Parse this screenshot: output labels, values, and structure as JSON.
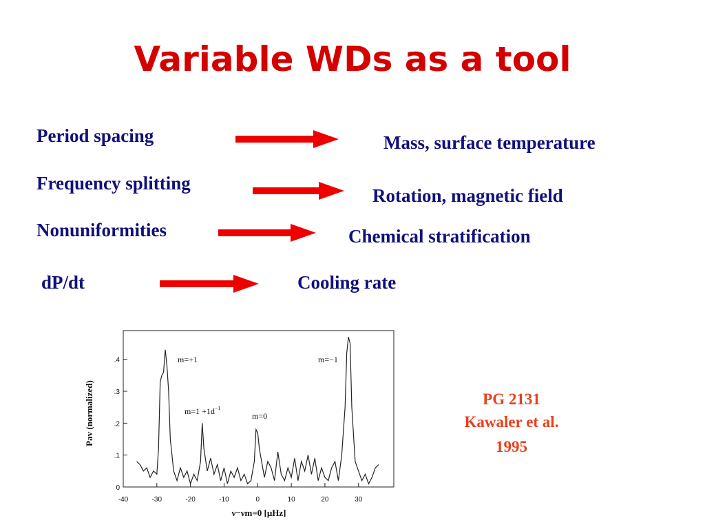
{
  "title": "Variable WDs as a tool",
  "rows": [
    {
      "left": "Period spacing",
      "right": "Mass, surface temperature"
    },
    {
      "left": "Frequency splitting",
      "right": "Rotation, magnetic field"
    },
    {
      "left": "Nonuniformities",
      "right": "Chemical stratification"
    },
    {
      "left": "dP/dt",
      "right": "Cooling rate"
    }
  ],
  "chart_data": {
    "type": "line",
    "xlabel": "ν−νm=0 [μHz]",
    "ylabel": "Pav (normalized)",
    "x": [
      -36,
      -35,
      -34,
      -33,
      -32,
      -31,
      -30,
      -29.5,
      -29,
      -28.5,
      -28,
      -27.5,
      -27,
      -26.5,
      -26,
      -25,
      -24,
      -23,
      -22,
      -21,
      -20,
      -19,
      -18,
      -17,
      -16.5,
      -16,
      -15,
      -14,
      -13,
      -12,
      -11,
      -10,
      -9,
      -8,
      -7,
      -6,
      -5,
      -4,
      -3,
      -2,
      -1,
      -0.5,
      0,
      0.5,
      1,
      2,
      3,
      4,
      5,
      6,
      7,
      8,
      9,
      10,
      11,
      12,
      13,
      14,
      15,
      16,
      17,
      18,
      19,
      20,
      21,
      22,
      23,
      24,
      25,
      26,
      26.5,
      27,
      27.5,
      28,
      29,
      30,
      31,
      32,
      33,
      34,
      35,
      36
    ],
    "values": [
      0.08,
      0.07,
      0.05,
      0.06,
      0.03,
      0.05,
      0.04,
      0.12,
      0.33,
      0.35,
      0.36,
      0.43,
      0.38,
      0.3,
      0.15,
      0.05,
      0.02,
      0.06,
      0.03,
      0.05,
      0.01,
      0.04,
      0.02,
      0.08,
      0.2,
      0.12,
      0.05,
      0.09,
      0.04,
      0.07,
      0.02,
      0.06,
      0.01,
      0.05,
      0.03,
      0.06,
      0.02,
      0.04,
      0.01,
      0.02,
      0.08,
      0.18,
      0.17,
      0.12,
      0.09,
      0.03,
      0.08,
      0.06,
      0.02,
      0.11,
      0.04,
      0.02,
      0.06,
      0.03,
      0.09,
      0.02,
      0.08,
      0.05,
      0.1,
      0.04,
      0.09,
      0.02,
      0.06,
      0.03,
      0.02,
      0.06,
      0.08,
      0.02,
      0.1,
      0.25,
      0.42,
      0.47,
      0.45,
      0.25,
      0.08,
      0.05,
      0.02,
      0.04,
      0.01,
      0.03,
      0.06,
      0.07
    ],
    "color": "#222222",
    "xlim": [
      -40,
      40.5
    ],
    "ylim": [
      0,
      0.49
    ],
    "xticks": [
      -40,
      -30,
      -20,
      -10,
      0,
      10,
      20,
      30
    ],
    "yticks": [
      0,
      {
        "value": 0.1,
        "label": ".1"
      },
      {
        "value": 0.2,
        "label": ".2"
      },
      {
        "value": 0.3,
        "label": ".3"
      },
      {
        "value": 0.4,
        "label": ".4"
      }
    ],
    "annotations": [
      {
        "text": "m=+1"
      },
      {
        "text": "m=1  +1d",
        "sup": "−1"
      },
      {
        "text": "m=0"
      },
      {
        "text": "m=−1"
      }
    ]
  },
  "caption": [
    "PG 2131",
    "Kawaler et al.",
    "1995"
  ]
}
